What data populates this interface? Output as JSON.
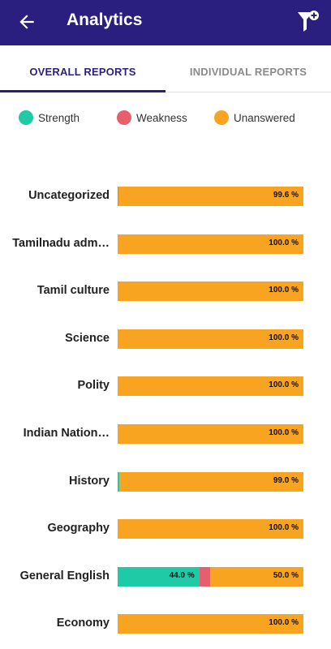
{
  "app_bar": {
    "title": "Analytics",
    "back_icon": "arrow-back-icon",
    "filter_icon": "filter-add-icon",
    "color": "#2a1f7e"
  },
  "tabs": [
    {
      "label": "OVERALL REPORTS",
      "active": true
    },
    {
      "label": "INDIVIDUAL REPORTS",
      "active": false
    }
  ],
  "legend": [
    {
      "label": "Strength",
      "color": "#1fcaa6"
    },
    {
      "label": "Weakness",
      "color": "#e85f6c"
    },
    {
      "label": "Unanswered",
      "color": "#f8a420"
    }
  ],
  "topics": [
    {
      "name": "Uncategorized",
      "strength": 0.4,
      "weakness": 0,
      "unanswered": 99.6,
      "strength_label": "",
      "weakness_label": "",
      "unanswered_label": "99.6 %"
    },
    {
      "name": "Tamilnadu adm…",
      "strength": 0,
      "weakness": 0,
      "unanswered": 100,
      "strength_label": "",
      "weakness_label": "",
      "unanswered_label": "100.0 %"
    },
    {
      "name": "Tamil culture",
      "strength": 0,
      "weakness": 0,
      "unanswered": 100,
      "strength_label": "",
      "weakness_label": "",
      "unanswered_label": "100.0 %"
    },
    {
      "name": "Science",
      "strength": 0,
      "weakness": 0,
      "unanswered": 100,
      "strength_label": "",
      "weakness_label": "",
      "unanswered_label": "100.0 %"
    },
    {
      "name": "Polity",
      "strength": 0,
      "weakness": 0,
      "unanswered": 100,
      "strength_label": "",
      "weakness_label": "",
      "unanswered_label": "100.0 %"
    },
    {
      "name": "Indian Nation…",
      "strength": 0,
      "weakness": 0,
      "unanswered": 100,
      "strength_label": "",
      "weakness_label": "",
      "unanswered_label": "100.0 %"
    },
    {
      "name": "History",
      "strength": 1.0,
      "weakness": 0,
      "unanswered": 99.0,
      "strength_label": "",
      "weakness_label": "",
      "unanswered_label": "99.0 %"
    },
    {
      "name": "Geography",
      "strength": 0,
      "weakness": 0,
      "unanswered": 100,
      "strength_label": "",
      "weakness_label": "",
      "unanswered_label": "100.0 %"
    },
    {
      "name": "General English",
      "strength": 44.0,
      "weakness": 6.0,
      "unanswered": 50.0,
      "strength_label": "44.0 %",
      "weakness_label": "",
      "unanswered_label": "50.0 %"
    },
    {
      "name": "Economy",
      "strength": 0,
      "weakness": 0,
      "unanswered": 100,
      "strength_label": "",
      "weakness_label": "",
      "unanswered_label": "100.0 %"
    }
  ]
}
